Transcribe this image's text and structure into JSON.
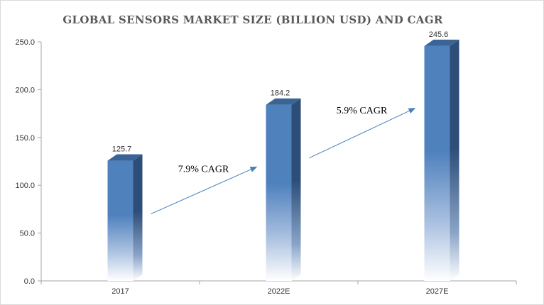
{
  "chart_data": {
    "type": "bar",
    "title": "GLOBAL SENSORS MARKET SIZE  (BILLION USD) AND CAGR",
    "categories": [
      "2017",
      "2022E",
      "2027E"
    ],
    "values": [
      125.7,
      184.2,
      245.6
    ],
    "data_labels": [
      "125.7",
      "184.2",
      "245.6"
    ],
    "ylim": [
      0,
      250
    ],
    "yticks": [
      "0.0",
      "50.0",
      "100.0",
      "150.0",
      "200.0",
      "250.0"
    ],
    "grid": false,
    "legend": "none",
    "annotations": [
      {
        "text": "7.9% CAGR",
        "from": "2017",
        "to": "2022E"
      },
      {
        "text": "5.9% CAGR",
        "from": "2022E",
        "to": "2027E"
      }
    ],
    "colors": {
      "bar_front": "#4f81bd",
      "bar_top": "#3b6496",
      "bar_side": "#2d4e78",
      "arrow": "#4a7ebb",
      "axis": "#a6a6a6"
    }
  }
}
